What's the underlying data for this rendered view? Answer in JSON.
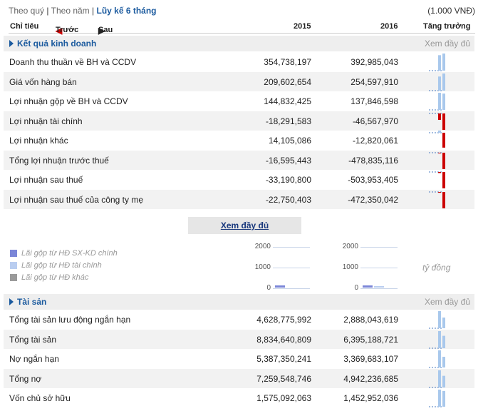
{
  "tabs": {
    "quarter": "Theo quý",
    "year": "Theo năm",
    "cumulative": "Lũy kế 6 tháng",
    "sep": "|"
  },
  "unit": "(1.000 VNĐ)",
  "header": {
    "indicator": "Chỉ tiêu",
    "prev": "Trước",
    "next": "Sau",
    "col1": "2015",
    "col2": "2016",
    "growth": "Tăng trưởng"
  },
  "sections": {
    "business": {
      "title": "Kết quả kinh doanh",
      "more": "Xem đầy đủ"
    },
    "assets": {
      "title": "Tài sản",
      "more": "Xem đầy đủ"
    }
  },
  "business_rows": [
    {
      "label": "Doanh thu thuần về BH và CCDV",
      "v2015": "354,738,197",
      "v2016": "392,985,043",
      "bars": [
        354738197,
        392985043
      ]
    },
    {
      "label": "Giá vốn hàng bán",
      "v2015": "209,602,654",
      "v2016": "254,597,910",
      "bars": [
        209602654,
        254597910
      ]
    },
    {
      "label": "Lợi nhuận gộp về BH và CCDV",
      "v2015": "144,832,425",
      "v2016": "137,846,598",
      "bars": [
        144832425,
        137846598
      ]
    },
    {
      "label": "Lợi nhuận tài chính",
      "v2015": "-18,291,583",
      "v2016": "-46,567,970",
      "bars": [
        -18291583,
        -46567970
      ]
    },
    {
      "label": "Lợi nhuận khác",
      "v2015": "14,105,086",
      "v2016": "-12,820,061",
      "bars": [
        14105086,
        -12820061
      ]
    },
    {
      "label": "Tổng lợi nhuận trước thuế",
      "v2015": "-16,595,443",
      "v2016": "-478,835,116",
      "bars": [
        -16595443,
        -478835116
      ]
    },
    {
      "label": "Lợi nhuận sau thuế",
      "v2015": "-33,190,800",
      "v2016": "-503,953,405",
      "bars": [
        -33190800,
        -503953405
      ]
    },
    {
      "label": "Lợi nhuận sau thuế của công ty mẹ",
      "v2015": "-22,750,403",
      "v2016": "-472,350,042",
      "bars": [
        -22750403,
        -472350042
      ]
    }
  ],
  "full_button": "Xem đầy đủ",
  "legend": [
    {
      "label": "Lãi gộp từ HĐ SX-KD chính",
      "color": "#7b86d8"
    },
    {
      "label": "Lãi gộp từ HĐ tài chính",
      "color": "#b9cdf0"
    },
    {
      "label": "Lãi gộp từ HĐ khác",
      "color": "#9a9a9a"
    }
  ],
  "mini_ticks": [
    "2000",
    "1000",
    "0"
  ],
  "chart_unit": "tỷ đồng",
  "asset_rows": [
    {
      "label": "Tổng tài sản lưu động ngắn hạn",
      "v2015": "4,628,775,992",
      "v2016": "2,888,043,619",
      "bars": [
        4628775992,
        2888043619
      ]
    },
    {
      "label": "Tổng tài sản",
      "v2015": "8,834,640,809",
      "v2016": "6,395,188,721",
      "bars": [
        8834640809,
        6395188721
      ]
    },
    {
      "label": "Nợ ngắn hạn",
      "v2015": "5,387,350,241",
      "v2016": "3,369,683,107",
      "bars": [
        5387350241,
        3369683107
      ]
    },
    {
      "label": "Tổng nợ",
      "v2015": "7,259,548,746",
      "v2016": "4,942,236,685",
      "bars": [
        7259548746,
        4942236685
      ]
    },
    {
      "label": "Vốn chủ sở hữu",
      "v2015": "1,575,092,063",
      "v2016": "1,452,952,036",
      "bars": [
        1575092063,
        1452952036
      ]
    }
  ],
  "colors": {
    "accent": "#1b5a9e",
    "positive_bar": "#a9c8ec",
    "negative_bar": "#cc0000"
  }
}
